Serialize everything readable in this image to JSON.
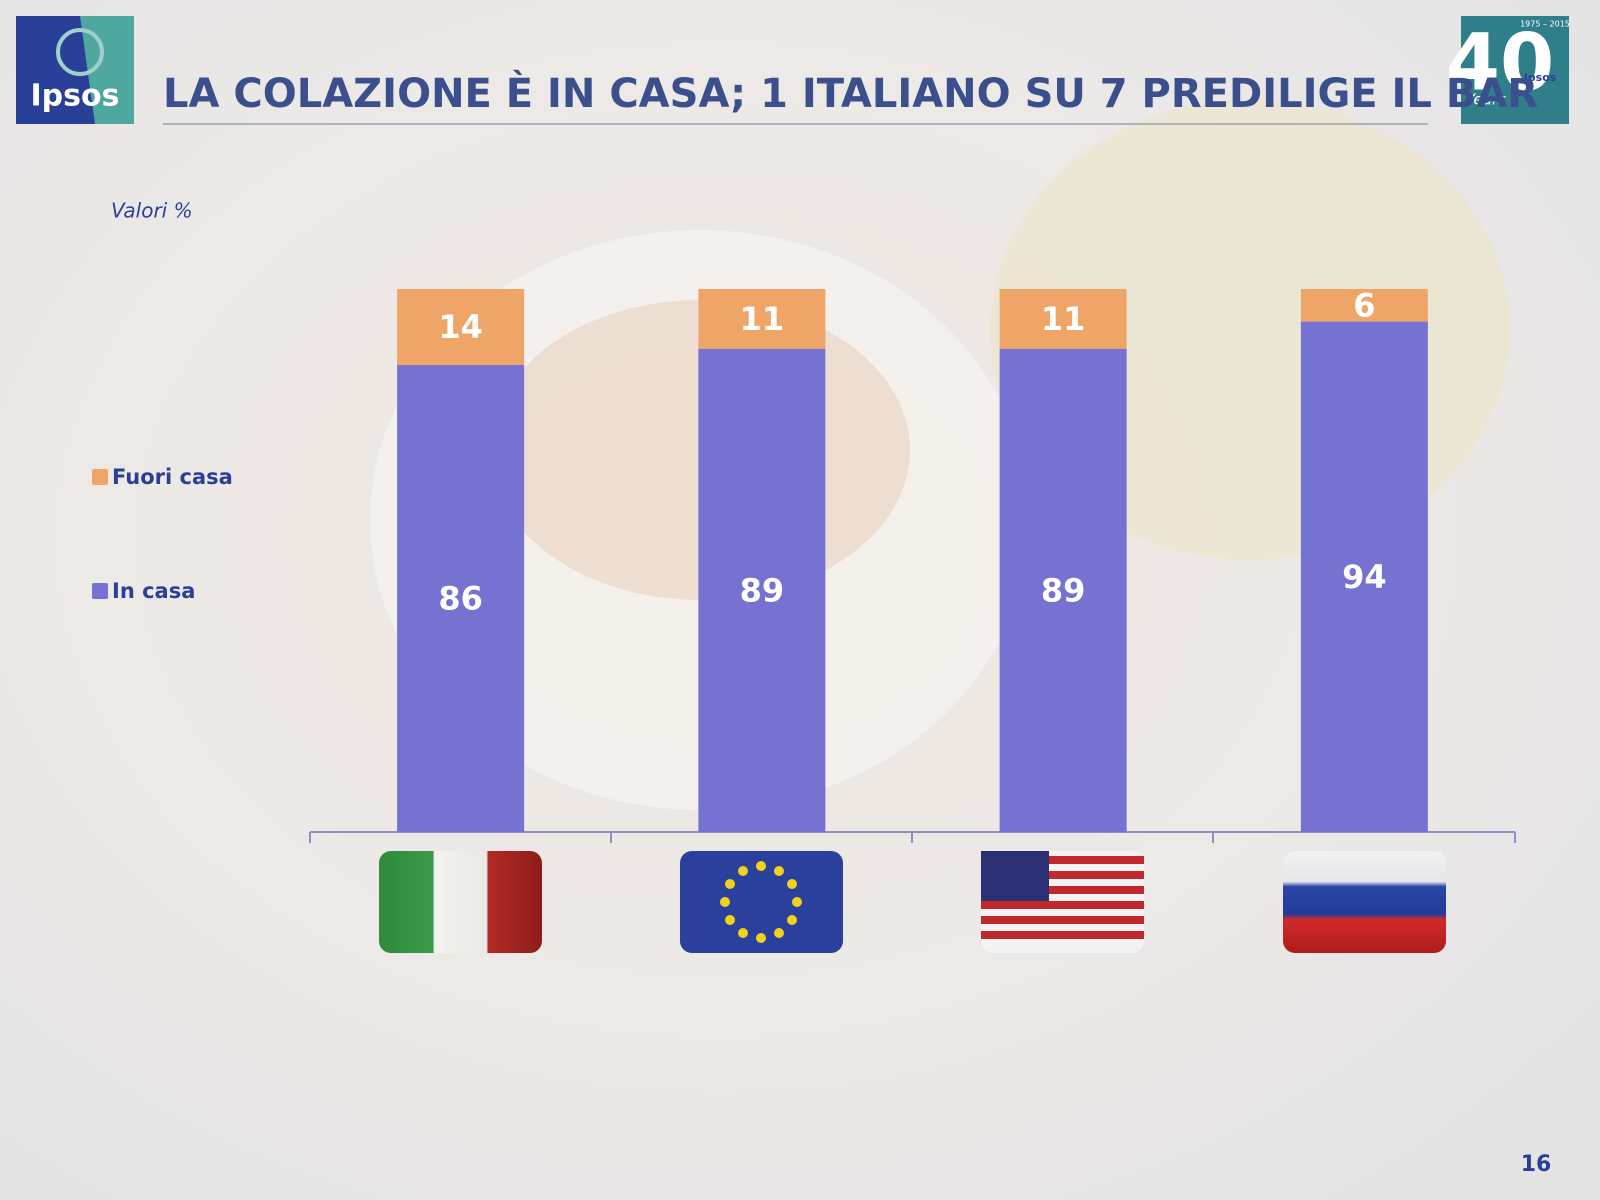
{
  "header": {
    "title": "LA COLAZIONE È IN CASA; 1 ITALIANO SU 7 PREDILIGE IL BAR",
    "logo": "Ipsos",
    "anniversary": {
      "number": "40",
      "years": "1975 – 2015",
      "word": "Years",
      "brand": "Ipsos"
    }
  },
  "page_number": "16",
  "chart_data": {
    "type": "stacked_bar",
    "subtitle": "Valori %",
    "categories": [
      null,
      null,
      null,
      null
    ],
    "series": [
      {
        "name": "In casa",
        "color": "#7572d2",
        "values": [
          86,
          89,
          89,
          94
        ]
      },
      {
        "name": "Fuori casa",
        "color": "#efa468",
        "values": [
          14,
          11,
          11,
          6
        ]
      }
    ],
    "ylim": [
      0,
      100
    ]
  }
}
